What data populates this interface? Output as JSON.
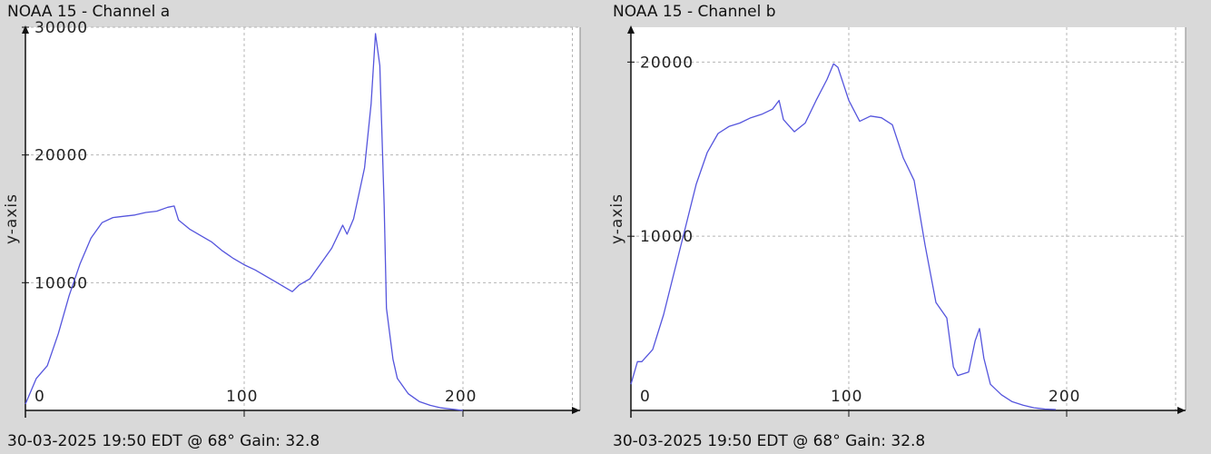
{
  "panels": [
    {
      "title": "NOAA 15 - Channel a",
      "footer": "30-03-2025 19:50 EDT @ 68° Gain: 32.8"
    },
    {
      "title": "NOAA 15 - Channel b",
      "footer": "30-03-2025 19:50 EDT @ 68° Gain: 32.8"
    }
  ],
  "chart_data": [
    {
      "type": "line",
      "title": "NOAA 15 - Channel a",
      "xlabel": "",
      "ylabel": "y-axis",
      "xlim": [
        0,
        255
      ],
      "ylim": [
        0,
        30000
      ],
      "xticks": [
        0,
        100,
        200
      ],
      "yticks": [
        10000,
        20000,
        30000
      ],
      "grid": true,
      "color": "#5555dd",
      "x": [
        0,
        5,
        10,
        15,
        20,
        25,
        30,
        35,
        40,
        45,
        50,
        55,
        60,
        65,
        68,
        70,
        75,
        80,
        85,
        90,
        95,
        100,
        105,
        110,
        115,
        120,
        122,
        125,
        130,
        135,
        140,
        145,
        147,
        150,
        155,
        158,
        160,
        162,
        164,
        165,
        168,
        170,
        175,
        180,
        185,
        190,
        195,
        200
      ],
      "y": [
        500,
        2500,
        3500,
        6000,
        9000,
        11500,
        13500,
        14700,
        15100,
        15200,
        15300,
        15500,
        15600,
        15900,
        16000,
        14900,
        14200,
        13700,
        13200,
        12500,
        11900,
        11400,
        11000,
        10500,
        10000,
        9500,
        9300,
        9800,
        10300,
        11500,
        12700,
        14500,
        13800,
        15000,
        19000,
        24000,
        29500,
        27000,
        16000,
        8000,
        4000,
        2500,
        1300,
        700,
        400,
        200,
        100,
        0
      ]
    },
    {
      "type": "line",
      "title": "NOAA 15 - Channel b",
      "xlabel": "",
      "ylabel": "y-axis",
      "xlim": [
        0,
        255
      ],
      "ylim": [
        0,
        22000
      ],
      "xticks": [
        0,
        100,
        200
      ],
      "yticks": [
        10000,
        20000
      ],
      "grid": true,
      "color": "#5555dd",
      "x": [
        0,
        3,
        5,
        10,
        15,
        20,
        25,
        30,
        35,
        40,
        45,
        50,
        55,
        60,
        65,
        68,
        70,
        75,
        80,
        85,
        90,
        93,
        95,
        100,
        105,
        110,
        115,
        120,
        125,
        130,
        135,
        140,
        145,
        148,
        150,
        155,
        158,
        160,
        162,
        165,
        170,
        175,
        180,
        185,
        190,
        195
      ],
      "y": [
        1500,
        2800,
        2800,
        3500,
        5500,
        8000,
        10500,
        13000,
        14800,
        15900,
        16300,
        16500,
        16800,
        17000,
        17300,
        17800,
        16700,
        16000,
        16500,
        17800,
        19000,
        19900,
        19700,
        17800,
        16600,
        16900,
        16800,
        16400,
        14500,
        13200,
        9500,
        6200,
        5300,
        2500,
        2000,
        2200,
        4000,
        4700,
        3000,
        1500,
        900,
        500,
        300,
        150,
        80,
        50
      ]
    }
  ]
}
